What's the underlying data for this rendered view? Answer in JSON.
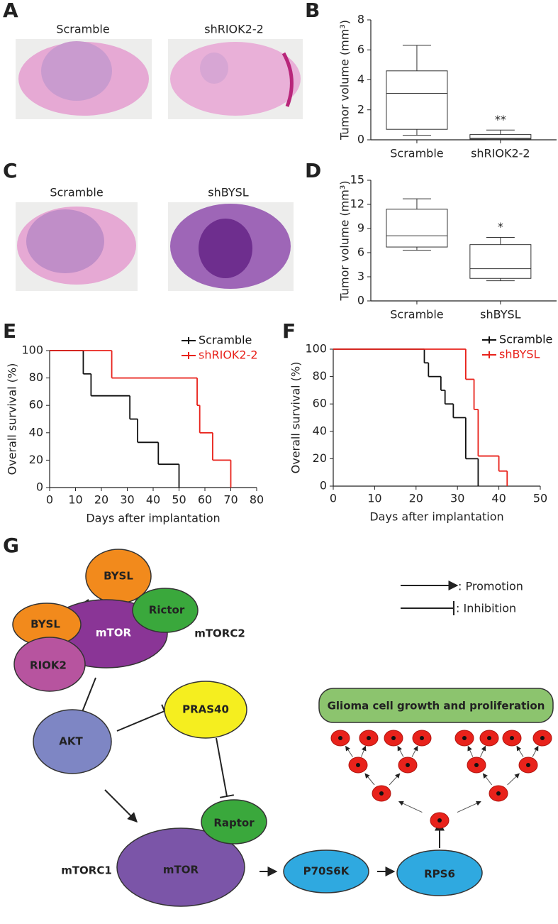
{
  "panel_labels": [
    "A",
    "B",
    "C",
    "D",
    "E",
    "F",
    "G"
  ],
  "images": {
    "A": [
      "Scramble",
      "shRIOK2-2"
    ],
    "C": [
      "Scramble",
      "shBYSL"
    ]
  },
  "chart_data": [
    {
      "type": "box",
      "ylabel": "Tumor volume (mm³)",
      "categories": [
        "Scramble",
        "shRIOK2-2"
      ],
      "boxes": [
        {
          "min": 0.3,
          "q1": 0.7,
          "median": 3.1,
          "q3": 4.6,
          "max": 6.3
        },
        {
          "min": 0,
          "q1": 0.05,
          "median": 0.1,
          "q3": 0.35,
          "max": 0.65
        }
      ],
      "annotations": [
        {
          "text": "**",
          "x": "shRIOK2-2"
        }
      ],
      "ylim": [
        0,
        8
      ],
      "yticks": [
        0,
        2,
        4,
        6,
        8
      ],
      "color": "#333333"
    },
    {
      "type": "box",
      "ylabel": "Tumor volume (mm³)",
      "categories": [
        "Scramble",
        "shBYSL"
      ],
      "boxes": [
        {
          "min": 6.3,
          "q1": 6.7,
          "median": 8.1,
          "q3": 11.4,
          "max": 12.7
        },
        {
          "min": 2.5,
          "q1": 2.8,
          "median": 4.0,
          "q3": 7.0,
          "max": 7.9
        }
      ],
      "annotations": [
        {
          "text": "*",
          "x": "shBYSL"
        }
      ],
      "ylim": [
        0,
        15
      ],
      "yticks": [
        0,
        3,
        6,
        9,
        12,
        15
      ],
      "color": "#333333"
    },
    {
      "type": "survival",
      "xlabel": "Days after implantation",
      "ylabel": "Overall survival (%)",
      "series": [
        {
          "name": "Scramble",
          "color": "#111111",
          "x": [
            0,
            13,
            16,
            31,
            34,
            42,
            50
          ],
          "values": [
            100,
            83,
            67,
            50,
            33,
            17,
            0
          ]
        },
        {
          "name": "shRIOK2-2",
          "color": "#e8221b",
          "x": [
            0,
            24,
            57,
            58,
            63,
            70
          ],
          "values": [
            100,
            80,
            60,
            40,
            20,
            0
          ]
        }
      ],
      "xlim": [
        0,
        80
      ],
      "xticks": [
        0,
        10,
        20,
        30,
        40,
        50,
        60,
        70,
        80
      ],
      "ylim": [
        0,
        100
      ],
      "yticks": [
        0,
        20,
        40,
        60,
        80,
        100
      ]
    },
    {
      "type": "survival",
      "xlabel": "Days after implantation",
      "ylabel": "Overall survival (%)",
      "series": [
        {
          "name": "Scramble",
          "color": "#111111",
          "x": [
            0,
            22,
            23,
            26,
            27,
            29,
            32,
            35
          ],
          "values": [
            100,
            90,
            80,
            70,
            60,
            50,
            20,
            0
          ]
        },
        {
          "name": "shBYSL",
          "color": "#e8221b",
          "x": [
            0,
            32,
            34,
            35,
            40,
            42
          ],
          "values": [
            100,
            78,
            56,
            22,
            11,
            0
          ]
        }
      ],
      "xlim": [
        0,
        50
      ],
      "xticks": [
        0,
        10,
        20,
        30,
        40,
        50
      ],
      "ylim": [
        0,
        100
      ],
      "yticks": [
        0,
        20,
        40,
        60,
        80,
        100
      ]
    }
  ],
  "diagram": {
    "legend": [
      ": Promotion",
      ": Inhibition"
    ],
    "nodes": [
      {
        "label": "BYSL"
      },
      {
        "label": "BYSL"
      },
      {
        "label": "mTOR"
      },
      {
        "label": "Rictor"
      },
      {
        "label": "RIOK2"
      },
      {
        "label": "mTORC2"
      },
      {
        "label": "AKT"
      },
      {
        "label": "PRAS40"
      },
      {
        "label": "Raptor"
      },
      {
        "label": "mTOR"
      },
      {
        "label": "mTORC1"
      },
      {
        "label": "P70S6K"
      },
      {
        "label": "RPS6"
      },
      {
        "label": "Glioma cell growth and proliferation"
      }
    ]
  }
}
